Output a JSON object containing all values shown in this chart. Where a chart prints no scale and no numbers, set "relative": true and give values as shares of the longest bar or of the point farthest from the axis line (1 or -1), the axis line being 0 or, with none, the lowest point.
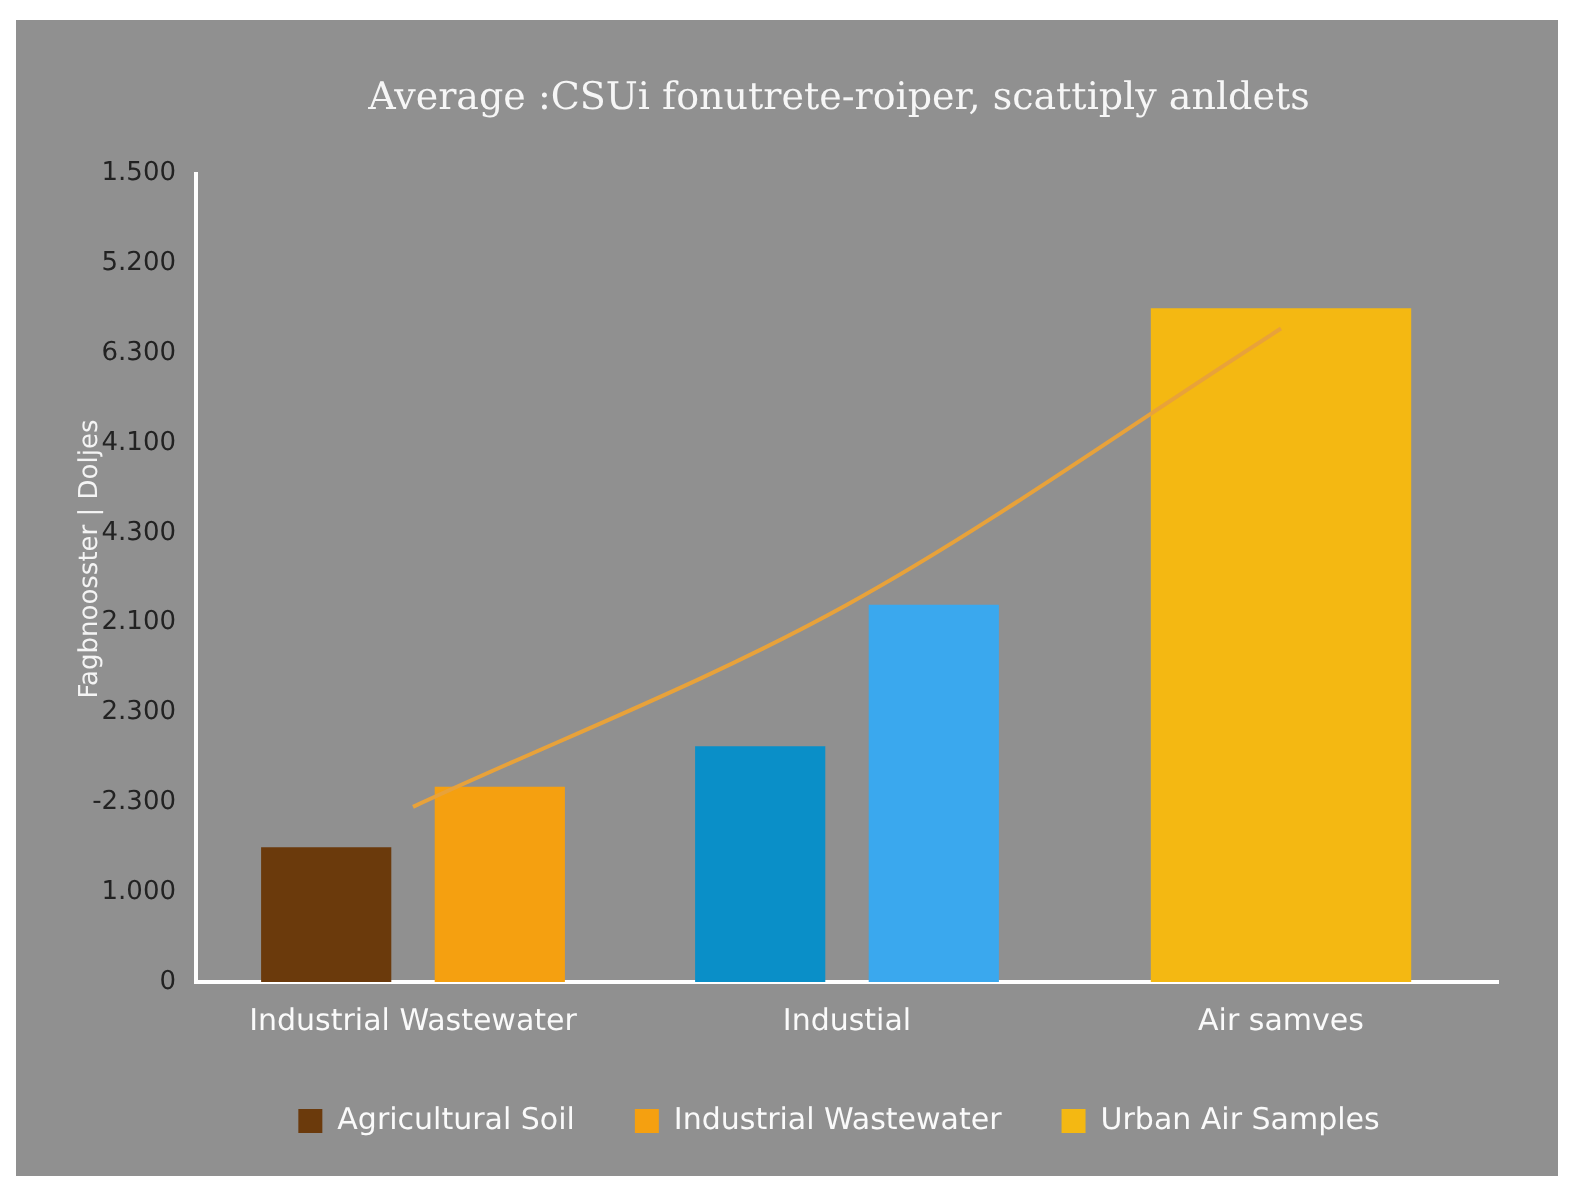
{
  "chart_data": {
    "type": "bar",
    "title": "Average :CSUi fonutrete-roiper, scattiply anldets",
    "ylabel": "Fagbnoosster | Doljes",
    "relative": true,
    "categories": [
      "Industrial Wastewater",
      "Industial",
      "Air samves"
    ],
    "series": [
      {
        "name": "Agricultural Soil",
        "color": "#6b3a0c",
        "values": [
          0.2,
          null,
          null
        ]
      },
      {
        "name": "Industrial Wastewater",
        "color": "#f5a010",
        "values": [
          0.29,
          null,
          null
        ]
      },
      {
        "color": "#0a8fc8",
        "values": [
          null,
          0.35,
          null
        ]
      },
      {
        "color": "#3aa8ee",
        "values": [
          null,
          0.56,
          null
        ]
      },
      {
        "name": "Urban Air Samples",
        "color": "#f4b812",
        "values": [
          null,
          null,
          1
        ]
      },
      {
        "type": "line",
        "color": "#e8a23a",
        "values": [
          0.26,
          0.56,
          0.97
        ]
      }
    ],
    "annotations": [
      "1.500",
      "5.200",
      "6.300",
      "4.100",
      "4.300",
      "2.100",
      "2.300",
      "-2.300",
      "1.000",
      "0"
    ],
    "grid": false,
    "legend": "bottom"
  }
}
